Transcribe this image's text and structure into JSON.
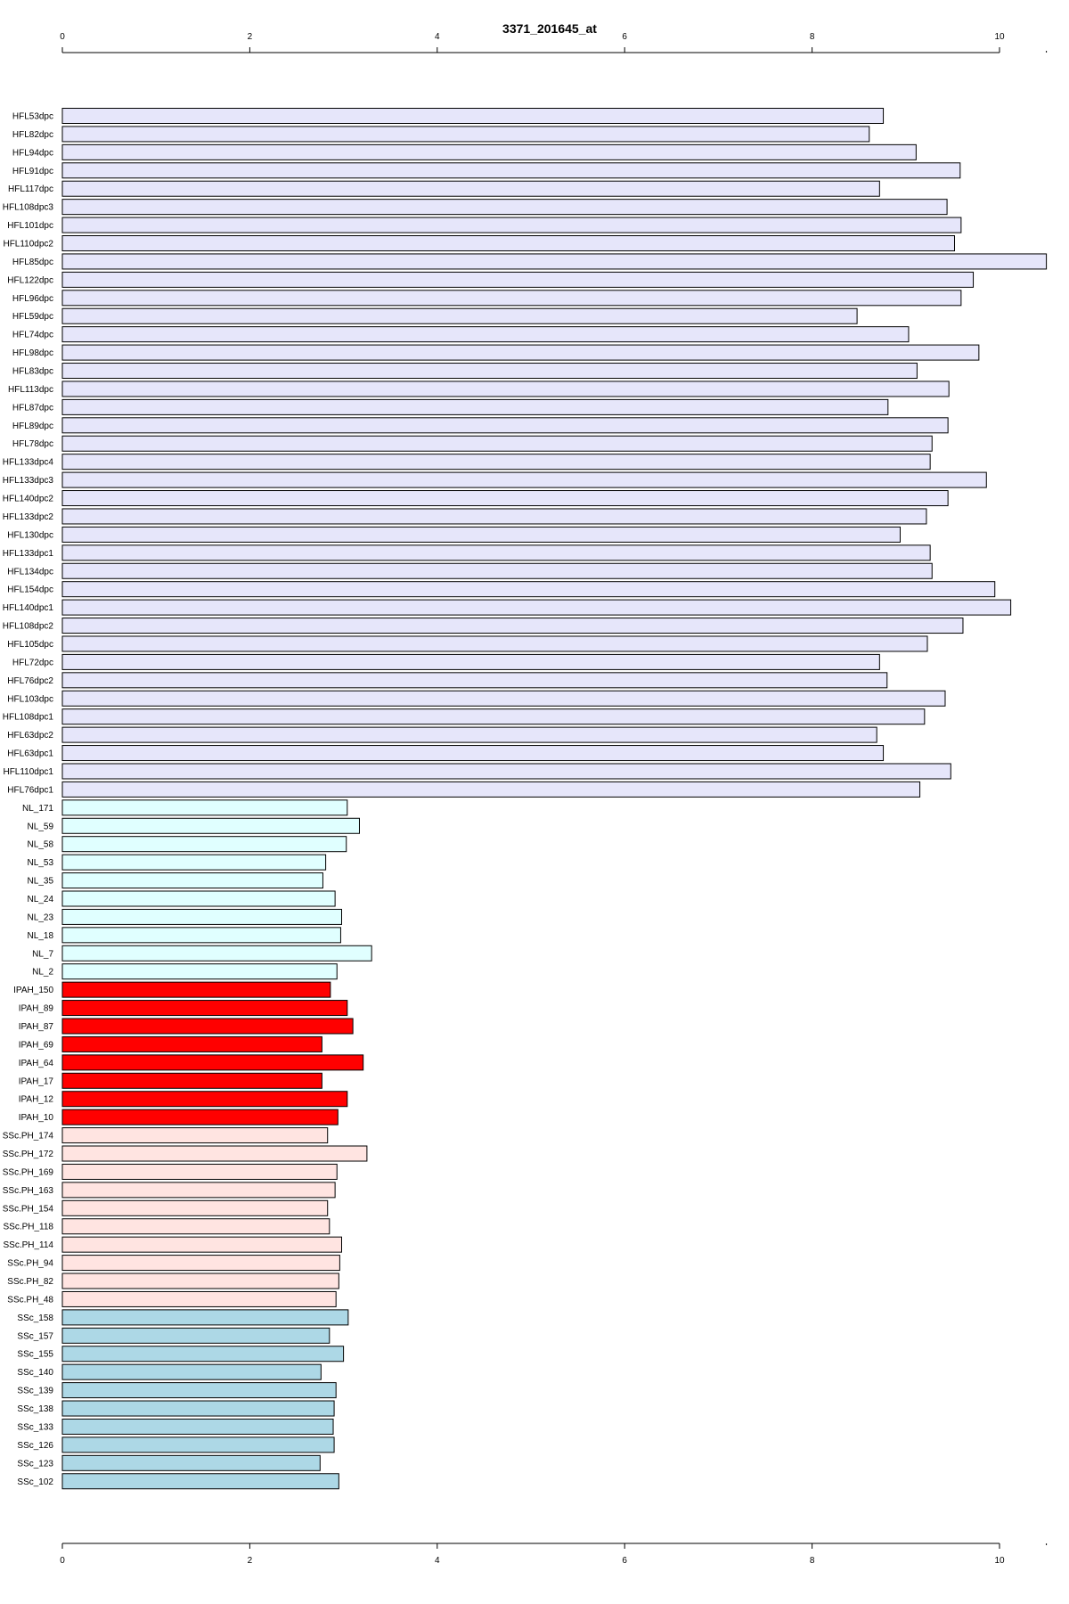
{
  "chart_data": {
    "type": "bar",
    "orientation": "horizontal",
    "title": "3371_201645_at",
    "xlabel": "",
    "ylabel": "",
    "xlim": [
      0,
      10.5
    ],
    "x_ticks": [
      0,
      2,
      4,
      6,
      8,
      10
    ],
    "axis_positions": [
      "top",
      "bottom"
    ],
    "grid": false,
    "legend": "none",
    "groups": [
      {
        "color": "#E6E6FA",
        "categories": [
          "HFL53dpc",
          "HFL82dpc",
          "HFL94dpc",
          "HFL91dpc",
          "HFL117dpc",
          "HFL108dpc3",
          "HFL101dpc",
          "HFL110dpc2",
          "HFL85dpc",
          "HFL122dpc",
          "HFL96dpc",
          "HFL59dpc",
          "HFL74dpc",
          "HFL98dpc",
          "HFL83dpc",
          "HFL113dpc",
          "HFL87dpc",
          "HFL89dpc",
          "HFL78dpc",
          "HFL133dpc4",
          "HFL133dpc3",
          "HFL140dpc2",
          "HFL133dpc2",
          "HFL130dpc",
          "HFL133dpc1",
          "HFL134dpc",
          "HFL154dpc",
          "HFL140dpc1",
          "HFL108dpc2",
          "HFL105dpc",
          "HFL72dpc",
          "HFL76dpc2",
          "HFL103dpc",
          "HFL108dpc1",
          "HFL63dpc2",
          "HFL63dpc1",
          "HFL110dpc1",
          "HFL76dpc1"
        ]
      },
      {
        "color": "#E0FFFF",
        "categories": [
          "NL_171",
          "NL_59",
          "NL_58",
          "NL_53",
          "NL_35",
          "NL_24",
          "NL_23",
          "NL_18",
          "NL_7",
          "NL_2"
        ]
      },
      {
        "color": "#FF0000",
        "categories": [
          "IPAH_150",
          "IPAH_89",
          "IPAH_87",
          "IPAH_69",
          "IPAH_64",
          "IPAH_17",
          "IPAH_12",
          "IPAH_10"
        ]
      },
      {
        "color": "#FFE4E1",
        "categories": [
          "SSc.PH_174",
          "SSc.PH_172",
          "SSc.PH_169",
          "SSc.PH_163",
          "SSc.PH_154",
          "SSc.PH_118",
          "SSc.PH_114",
          "SSc.PH_94",
          "SSc.PH_82",
          "SSc.PH_48"
        ]
      },
      {
        "color": "#ADD8E6",
        "categories": [
          "SSc_158",
          "SSc_157",
          "SSc_155",
          "SSc_140",
          "SSc_139",
          "SSc_138",
          "SSc_133",
          "SSc_126",
          "SSc_123",
          "SSc_102"
        ]
      }
    ],
    "categories": [
      "HFL53dpc",
      "HFL82dpc",
      "HFL94dpc",
      "HFL91dpc",
      "HFL117dpc",
      "HFL108dpc3",
      "HFL101dpc",
      "HFL110dpc2",
      "HFL85dpc",
      "HFL122dpc",
      "HFL96dpc",
      "HFL59dpc",
      "HFL74dpc",
      "HFL98dpc",
      "HFL83dpc",
      "HFL113dpc",
      "HFL87dpc",
      "HFL89dpc",
      "HFL78dpc",
      "HFL133dpc4",
      "HFL133dpc3",
      "HFL140dpc2",
      "HFL133dpc2",
      "HFL130dpc",
      "HFL133dpc1",
      "HFL134dpc",
      "HFL154dpc",
      "HFL140dpc1",
      "HFL108dpc2",
      "HFL105dpc",
      "HFL72dpc",
      "HFL76dpc2",
      "HFL103dpc",
      "HFL108dpc1",
      "HFL63dpc2",
      "HFL63dpc1",
      "HFL110dpc1",
      "HFL76dpc1",
      "NL_171",
      "NL_59",
      "NL_58",
      "NL_53",
      "NL_35",
      "NL_24",
      "NL_23",
      "NL_18",
      "NL_7",
      "NL_2",
      "IPAH_150",
      "IPAH_89",
      "IPAH_87",
      "IPAH_69",
      "IPAH_64",
      "IPAH_17",
      "IPAH_12",
      "IPAH_10",
      "SSc.PH_174",
      "SSc.PH_172",
      "SSc.PH_169",
      "SSc.PH_163",
      "SSc.PH_154",
      "SSc.PH_118",
      "SSc.PH_114",
      "SSc.PH_94",
      "SSc.PH_82",
      "SSc.PH_48",
      "SSc_158",
      "SSc_157",
      "SSc_155",
      "SSc_140",
      "SSc_139",
      "SSc_138",
      "SSc_133",
      "SSc_126",
      "SSc_123",
      "SSc_102"
    ],
    "values": [
      8.76,
      8.61,
      9.11,
      9.58,
      8.72,
      9.44,
      9.59,
      9.52,
      10.5,
      9.72,
      9.59,
      8.48,
      9.03,
      9.78,
      9.12,
      9.46,
      8.81,
      9.45,
      9.28,
      9.26,
      9.86,
      9.45,
      9.22,
      8.94,
      9.26,
      9.28,
      9.95,
      10.12,
      9.61,
      9.23,
      8.72,
      8.8,
      9.42,
      9.2,
      8.69,
      8.76,
      9.48,
      9.15,
      3.04,
      3.17,
      3.03,
      2.81,
      2.78,
      2.91,
      2.98,
      2.97,
      3.3,
      2.93,
      2.86,
      3.04,
      3.1,
      2.77,
      3.21,
      2.77,
      3.04,
      2.94,
      2.83,
      3.25,
      2.93,
      2.91,
      2.83,
      2.85,
      2.98,
      2.96,
      2.95,
      2.92,
      3.05,
      2.85,
      3.0,
      2.76,
      2.92,
      2.9,
      2.89,
      2.9,
      2.75,
      2.95
    ]
  }
}
